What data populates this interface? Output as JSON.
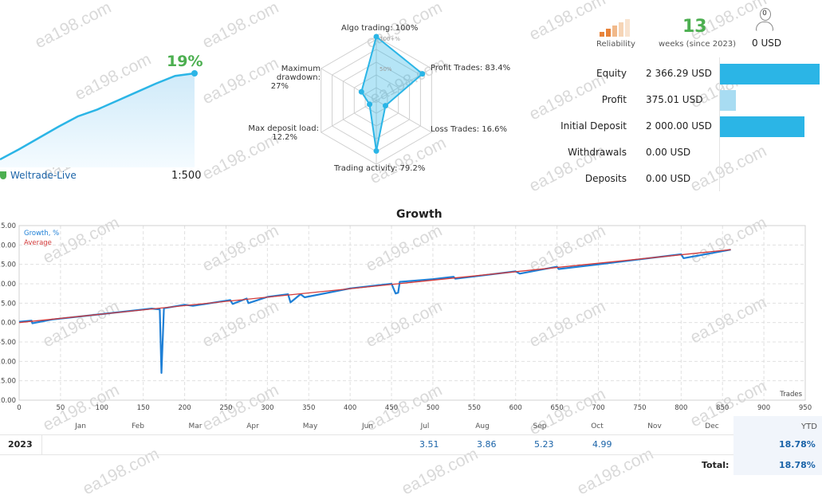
{
  "summary": {
    "gain": "19%",
    "broker": "Weltrade-Live",
    "leverage": "1:500",
    "gain_curve": [
      0,
      0.12,
      0.25,
      0.38,
      0.5,
      0.58,
      0.68,
      0.78,
      0.88,
      0.97,
      1.0
    ]
  },
  "radar": {
    "algo_trading": "Algo trading: 100%",
    "profit_trades": "Profit Trades: 83.4%",
    "loss_trades": "Loss Trades: 16.6%",
    "trading_activity": "Trading activity: 79.2%",
    "max_deposit_load_line1": "Max deposit load:",
    "max_deposit_load_line2": "12.2%",
    "max_drawdown_line1": "Maximum drawdown:",
    "max_drawdown_line2": "27%",
    "ring_100": "100+%",
    "ring_50": "50%",
    "values": [
      1.0,
      0.834,
      0.166,
      0.792,
      0.122,
      0.27
    ]
  },
  "reliability": {
    "label": "Reliability",
    "weeks_value": "13",
    "weeks_label": "weeks (since 2023)",
    "subscribers_count": "0",
    "subscribers_value": "0 USD",
    "accent": "#e8833a",
    "green": "#4caf50"
  },
  "account": {
    "rows": [
      {
        "label": "Equity",
        "value": "2 366.29 USD",
        "bar_fraction": 1.0,
        "bar_color": "#2bb5e6"
      },
      {
        "label": "Profit",
        "value": "375.01 USD",
        "bar_fraction": 0.16,
        "bar_color": "#a8dcf2"
      },
      {
        "label": "Initial Deposit",
        "value": "2 000.00 USD",
        "bar_fraction": 0.85,
        "bar_color": "#2bb5e6"
      },
      {
        "label": "Withdrawals",
        "value": "0.00 USD",
        "bar_fraction": 0,
        "bar_color": "#2bb5e6"
      },
      {
        "label": "Deposits",
        "value": "0.00 USD",
        "bar_fraction": 0,
        "bar_color": "#2bb5e6"
      }
    ]
  },
  "chart_data": {
    "type": "line",
    "title": "Growth",
    "xlabel": "Trades",
    "ylabel": "",
    "xlim": [
      0,
      950
    ],
    "ylim": [
      -20,
      25
    ],
    "x_ticks": [
      0,
      50,
      100,
      150,
      200,
      250,
      300,
      350,
      400,
      450,
      500,
      550,
      600,
      650,
      700,
      750,
      800,
      850,
      900,
      950
    ],
    "y_ticks": [
      25,
      20,
      15,
      10,
      5,
      0,
      -5,
      -10,
      -15,
      -20
    ],
    "y_tick_labels": [
      "25.00",
      "20.00",
      "15.00",
      "10.00",
      "5.00",
      "0.00",
      "-5.00",
      "-10.00",
      "-15.00",
      "-20.00"
    ],
    "months": [
      "Jan",
      "Feb",
      "Mar",
      "Apr",
      "May",
      "Jun",
      "Jul",
      "Aug",
      "Sep",
      "Oct",
      "Nov",
      "Dec"
    ],
    "grid": true,
    "legend_position": "top-left",
    "series": [
      {
        "name": "Growth, %",
        "color": "#1e7fd6",
        "x": [
          0,
          15,
          16,
          40,
          100,
          160,
          170,
          172,
          175,
          178,
          200,
          210,
          255,
          258,
          275,
          277,
          300,
          325,
          328,
          340,
          345,
          400,
          450,
          455,
          458,
          460,
          500,
          525,
          527,
          600,
          605,
          650,
          652,
          700,
          750,
          800,
          803,
          860
        ],
        "y": [
          0.2,
          0.5,
          -0.2,
          0.8,
          2.2,
          3.6,
          3.4,
          -13.0,
          3.7,
          3.8,
          4.6,
          4.3,
          5.8,
          4.8,
          6.2,
          5.0,
          6.6,
          7.3,
          5.2,
          7.3,
          6.5,
          8.8,
          10.0,
          7.5,
          7.7,
          10.5,
          11.2,
          11.8,
          11.3,
          13.2,
          12.6,
          14.4,
          13.8,
          15.0,
          16.3,
          17.6,
          16.6,
          18.8
        ]
      },
      {
        "name": "Average",
        "color": "#d23a3a",
        "x": [
          0,
          860
        ],
        "y": [
          0,
          18.8
        ]
      }
    ]
  },
  "table": {
    "year": "2023",
    "ytd_header": "YTD",
    "months": {
      "Jul": "3.51",
      "Aug": "3.86",
      "Sep": "5.23",
      "Oct": "4.99"
    },
    "ytd": "18.78%",
    "total_label": "Total:",
    "total": "18.78%"
  },
  "watermark": "ea198.com"
}
